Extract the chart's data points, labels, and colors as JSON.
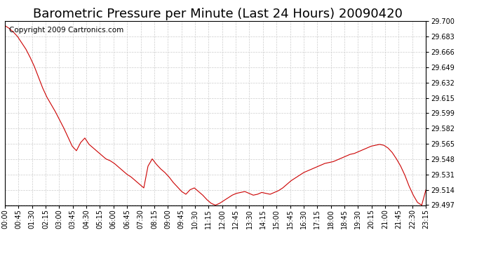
{
  "title": "Barometric Pressure per Minute (Last 24 Hours) 20090420",
  "copyright": "Copyright 2009 Cartronics.com",
  "line_color": "#cc0000",
  "background_color": "#ffffff",
  "grid_color": "#cccccc",
  "ylim": [
    29.497,
    29.7
  ],
  "yticks": [
    29.497,
    29.514,
    29.531,
    29.548,
    29.565,
    29.582,
    29.599,
    29.615,
    29.632,
    29.649,
    29.666,
    29.683,
    29.7
  ],
  "xtick_labels": [
    "00:00",
    "00:45",
    "01:30",
    "02:15",
    "03:00",
    "03:45",
    "04:30",
    "05:15",
    "06:00",
    "06:45",
    "07:30",
    "08:15",
    "09:00",
    "09:45",
    "10:30",
    "11:15",
    "12:00",
    "12:45",
    "13:30",
    "14:15",
    "15:00",
    "15:45",
    "16:30",
    "17:15",
    "18:00",
    "18:45",
    "19:30",
    "20:15",
    "21:00",
    "21:45",
    "22:30",
    "23:15"
  ],
  "title_fontsize": 13,
  "copyright_fontsize": 7.5,
  "tick_fontsize": 7,
  "pressure_data": [
    29.695,
    29.692,
    29.688,
    29.683,
    29.676,
    29.669,
    29.66,
    29.65,
    29.638,
    29.626,
    29.616,
    29.608,
    29.6,
    29.591,
    29.582,
    29.572,
    29.562,
    29.557,
    29.566,
    29.571,
    29.564,
    29.56,
    29.556,
    29.552,
    29.548,
    29.546,
    29.543,
    29.539,
    29.535,
    29.531,
    29.528,
    29.524,
    29.52,
    29.516,
    29.54,
    29.548,
    29.542,
    29.537,
    29.533,
    29.528,
    29.522,
    29.517,
    29.512,
    29.509,
    29.514,
    29.516,
    29.512,
    29.508,
    29.503,
    29.499,
    29.497,
    29.499,
    29.502,
    29.505,
    29.508,
    29.51,
    29.511,
    29.512,
    29.51,
    29.508,
    29.509,
    29.511,
    29.51,
    29.509,
    29.511,
    29.513,
    29.516,
    29.52,
    29.524,
    29.527,
    29.53,
    29.533,
    29.535,
    29.537,
    29.539,
    29.541,
    29.543,
    29.544,
    29.545,
    29.547,
    29.549,
    29.551,
    29.553,
    29.554,
    29.556,
    29.558,
    29.56,
    29.562,
    29.563,
    29.564,
    29.563,
    29.56,
    29.555,
    29.548,
    29.54,
    29.53,
    29.518,
    29.508,
    29.5,
    29.497,
    29.514
  ]
}
